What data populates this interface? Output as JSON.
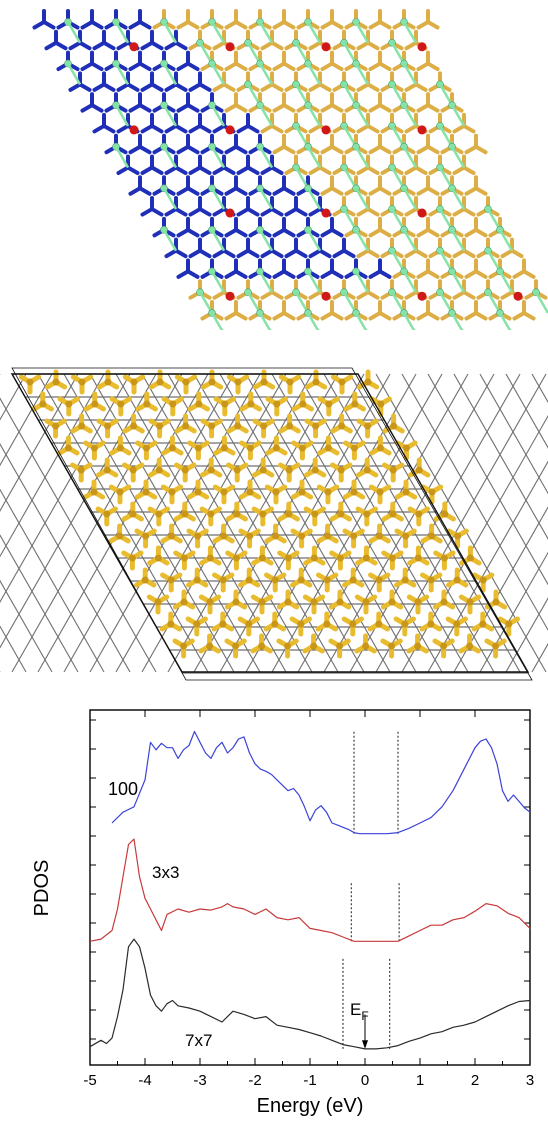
{
  "figure": {
    "top_panel": {
      "colors": {
        "blue_atoms": "#1f2fb8",
        "gold_atoms": "#dcae45",
        "green_atoms": "#86e3a8",
        "red_adatoms": "#d01818"
      }
    },
    "middle_panel": {
      "colors": {
        "gold_atoms": "#e8bc2e",
        "gray_substrate": "#6f6f6f"
      }
    }
  },
  "chart_data": {
    "type": "line",
    "xlabel": "Energy (eV)",
    "ylabel": "PDOS",
    "xlim": [
      -5,
      3
    ],
    "xticks": [
      "-5",
      "-4",
      "-3",
      "-2",
      "-1",
      "0",
      "1",
      "2",
      "3"
    ],
    "fermi_label": "E",
    "fermi_sub": "F",
    "series": [
      {
        "name": "100",
        "color": "#3b43d8",
        "offset": 2.0,
        "x": [
          -4.6,
          -4.4,
          -4.2,
          -4.0,
          -3.9,
          -3.8,
          -3.7,
          -3.6,
          -3.5,
          -3.4,
          -3.3,
          -3.2,
          -3.1,
          -3.0,
          -2.9,
          -2.8,
          -2.7,
          -2.6,
          -2.5,
          -2.4,
          -2.3,
          -2.2,
          -2.1,
          -2.0,
          -1.9,
          -1.8,
          -1.7,
          -1.6,
          -1.5,
          -1.4,
          -1.3,
          -1.2,
          -1.1,
          -1.0,
          -0.9,
          -0.8,
          -0.7,
          -0.6,
          -0.5,
          -0.4,
          -0.3,
          -0.2,
          -0.1,
          0.0,
          0.2,
          0.4,
          0.6,
          0.8,
          1.0,
          1.2,
          1.4,
          1.6,
          1.8,
          2.0,
          2.1,
          2.2,
          2.3,
          2.4,
          2.5,
          2.6,
          2.7,
          2.8,
          2.9,
          3.0
        ],
        "y": [
          0.1,
          0.2,
          0.25,
          0.5,
          0.85,
          0.78,
          0.84,
          0.8,
          0.8,
          0.7,
          0.78,
          0.82,
          0.95,
          0.85,
          0.75,
          0.7,
          0.8,
          0.85,
          0.75,
          0.8,
          0.88,
          0.9,
          0.75,
          0.65,
          0.6,
          0.58,
          0.55,
          0.5,
          0.45,
          0.4,
          0.42,
          0.36,
          0.25,
          0.12,
          0.22,
          0.26,
          0.2,
          0.1,
          0.08,
          0.06,
          0.04,
          0.01,
          0.0,
          0.0,
          0.0,
          0.0,
          0.01,
          0.05,
          0.1,
          0.15,
          0.25,
          0.4,
          0.6,
          0.8,
          0.86,
          0.88,
          0.8,
          0.65,
          0.4,
          0.3,
          0.36,
          0.3,
          0.24,
          0.2
        ]
      },
      {
        "name": "3x3",
        "color": "#c83a3a",
        "offset": 1.0,
        "x": [
          -5.0,
          -4.8,
          -4.6,
          -4.5,
          -4.4,
          -4.3,
          -4.2,
          -4.1,
          -4.0,
          -3.9,
          -3.8,
          -3.7,
          -3.6,
          -3.4,
          -3.2,
          -3.0,
          -2.8,
          -2.6,
          -2.5,
          -2.4,
          -2.2,
          -2.0,
          -1.8,
          -1.6,
          -1.4,
          -1.2,
          -1.0,
          -0.8,
          -0.6,
          -0.4,
          -0.2,
          0.0,
          0.2,
          0.4,
          0.6,
          0.8,
          1.0,
          1.2,
          1.4,
          1.6,
          1.8,
          2.0,
          2.2,
          2.4,
          2.6,
          2.8,
          3.0
        ],
        "y": [
          0.0,
          0.02,
          0.1,
          0.3,
          0.6,
          0.9,
          0.95,
          0.6,
          0.4,
          0.3,
          0.2,
          0.1,
          0.25,
          0.3,
          0.27,
          0.3,
          0.29,
          0.32,
          0.35,
          0.32,
          0.3,
          0.25,
          0.3,
          0.22,
          0.2,
          0.22,
          0.12,
          0.1,
          0.08,
          0.04,
          0.0,
          0.0,
          0.0,
          0.0,
          0.0,
          0.05,
          0.1,
          0.15,
          0.15,
          0.2,
          0.22,
          0.28,
          0.35,
          0.33,
          0.26,
          0.22,
          0.12
        ]
      },
      {
        "name": "7x7",
        "color": "#2a2a2a",
        "offset": 0.0,
        "x": [
          -5.0,
          -4.8,
          -4.7,
          -4.6,
          -4.5,
          -4.4,
          -4.3,
          -4.2,
          -4.1,
          -4.0,
          -3.9,
          -3.8,
          -3.7,
          -3.6,
          -3.5,
          -3.4,
          -3.2,
          -3.0,
          -2.8,
          -2.6,
          -2.4,
          -2.2,
          -2.0,
          -1.8,
          -1.6,
          -1.4,
          -1.2,
          -1.0,
          -0.8,
          -0.6,
          -0.4,
          -0.2,
          0.0,
          0.2,
          0.4,
          0.6,
          0.8,
          1.0,
          1.2,
          1.4,
          1.6,
          1.8,
          2.0,
          2.2,
          2.4,
          2.6,
          2.8,
          3.0
        ],
        "y": [
          0.02,
          0.08,
          0.05,
          0.1,
          0.3,
          0.55,
          0.95,
          1.02,
          0.95,
          0.75,
          0.5,
          0.4,
          0.35,
          0.42,
          0.45,
          0.4,
          0.38,
          0.35,
          0.3,
          0.25,
          0.35,
          0.32,
          0.28,
          0.3,
          0.22,
          0.2,
          0.18,
          0.15,
          0.12,
          0.08,
          0.04,
          0.02,
          0.0,
          0.0,
          0.01,
          0.03,
          0.07,
          0.1,
          0.14,
          0.16,
          0.2,
          0.22,
          0.25,
          0.3,
          0.35,
          0.4,
          0.44,
          0.45
        ]
      }
    ],
    "curve_labels": [
      "100",
      "3x3",
      "7x7"
    ],
    "vlines": [
      {
        "x": -0.2,
        "ymin_offset": 2.0,
        "ymax_offset": 2.95
      },
      {
        "x": 0.6,
        "ymin_offset": 2.0,
        "ymax_offset": 2.95
      },
      {
        "x": -0.25,
        "ymin_offset": 1.0,
        "ymax_offset": 1.55
      },
      {
        "x": 0.62,
        "ymin_offset": 1.0,
        "ymax_offset": 1.55
      },
      {
        "x": -0.4,
        "ymin_offset": 0.0,
        "ymax_offset": 0.85
      },
      {
        "x": 0.45,
        "ymin_offset": 0.0,
        "ymax_offset": 0.85
      }
    ]
  }
}
